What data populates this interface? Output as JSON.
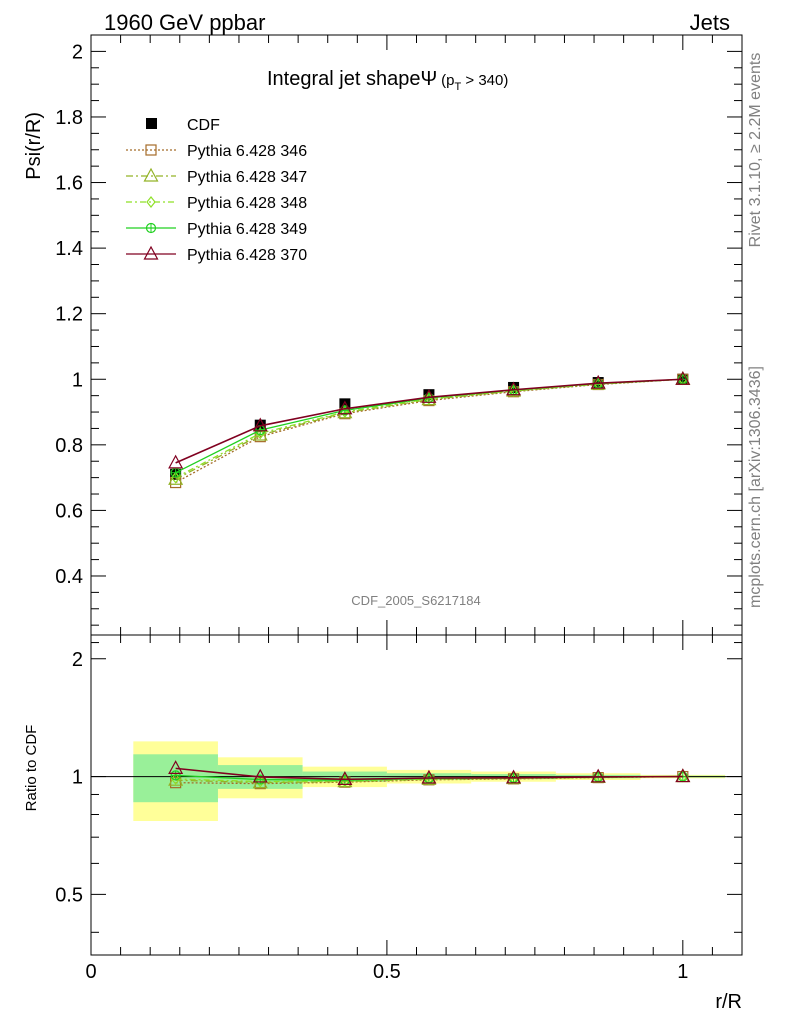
{
  "header": {
    "left": "1960 GeV ppbar",
    "right": "Jets"
  },
  "side_labels": {
    "top": "Rivet 3.1.10, ≥ 2.2M events",
    "bottom": "mcplots.cern.ch [arXiv:1306.3436]"
  },
  "chart_data": {
    "type": "line",
    "title": "Integral jet shapeΨ",
    "title_sub": "(p",
    "title_sub_index": "T",
    "title_sub_tail": " > 340)",
    "watermark": "CDF_2005_S6217184",
    "xlabel": "r/R",
    "ylabel": "Psi(r/R)",
    "ratio_ylabel": "Ratio to CDF",
    "xlim": [
      0,
      1.1
    ],
    "ylim": [
      0.22,
      2.05
    ],
    "ratio_ylim": [
      0.35,
      2.3
    ],
    "x_ticks": [
      "0",
      "0.5",
      "1"
    ],
    "y_ticks": [
      "0.4",
      "0.6",
      "0.8",
      "1",
      "1.2",
      "1.4",
      "1.6",
      "1.8",
      "2"
    ],
    "ratio_ticks": [
      "0.5",
      "1",
      "2"
    ],
    "x": [
      0.143,
      0.286,
      0.429,
      0.571,
      0.714,
      0.857,
      1.0
    ],
    "data": {
      "name": "CDF",
      "y": [
        0.71,
        0.86,
        0.925,
        0.953,
        0.975,
        0.99,
        1.0
      ],
      "band_inner": [
        0.14,
        0.07,
        0.03,
        0.02,
        0.015,
        0.01,
        0.005
      ],
      "band_outer": [
        0.23,
        0.12,
        0.06,
        0.04,
        0.03,
        0.02,
        0.01
      ]
    },
    "series": [
      {
        "name": "Pythia 6.428 346",
        "color": "#a56c29",
        "y": [
          0.685,
          0.825,
          0.895,
          0.935,
          0.962,
          0.984,
          1.0
        ]
      },
      {
        "name": "Pythia 6.428 347",
        "color": "#93b327",
        "y": [
          0.695,
          0.83,
          0.898,
          0.938,
          0.964,
          0.985,
          1.0
        ]
      },
      {
        "name": "Pythia 6.428 348",
        "color": "#8fe028",
        "y": [
          0.7,
          0.835,
          0.9,
          0.94,
          0.965,
          0.986,
          1.0
        ]
      },
      {
        "name": "Pythia 6.428 349",
        "color": "#20d020",
        "y": [
          0.715,
          0.845,
          0.905,
          0.943,
          0.967,
          0.987,
          1.0
        ]
      },
      {
        "name": "Pythia 6.428 370",
        "color": "#800020",
        "y": [
          0.745,
          0.858,
          0.91,
          0.945,
          0.968,
          0.988,
          1.0
        ]
      }
    ]
  }
}
